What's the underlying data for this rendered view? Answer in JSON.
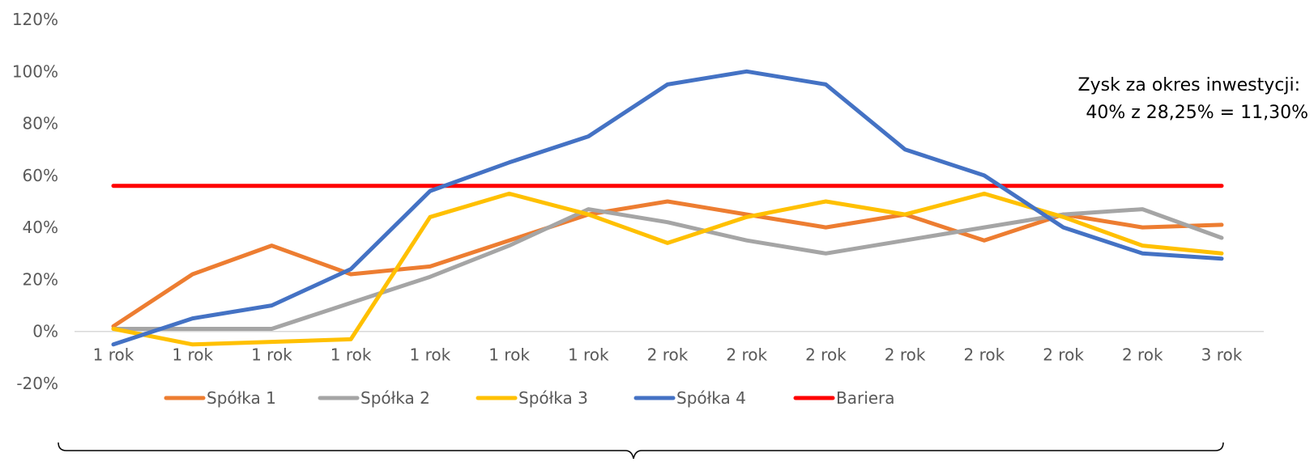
{
  "chart_data": {
    "type": "line",
    "categories": [
      "1 rok",
      "1 rok",
      "1 rok",
      "1 rok",
      "1 rok",
      "1 rok",
      "1 rok",
      "2 rok",
      "2 rok",
      "2 rok",
      "2 rok",
      "2 rok",
      "2 rok",
      "2 rok",
      "3 rok"
    ],
    "y_ticks": [
      "120%",
      "100%",
      "80%",
      "60%",
      "40%",
      "20%",
      "0%",
      "-20%"
    ],
    "ylim": [
      -20,
      120
    ],
    "y_unit": "%",
    "grid": false,
    "legend_position": "bottom",
    "series": [
      {
        "name": "Spółka 1",
        "color": "#ED7D31",
        "values": [
          2,
          22,
          33,
          22,
          25,
          35,
          45,
          50,
          45,
          40,
          45,
          35,
          45,
          40,
          41
        ]
      },
      {
        "name": "Spółka 2",
        "color": "#A5A5A5",
        "values": [
          1,
          1,
          1,
          11,
          21,
          33,
          47,
          42,
          35,
          30,
          35,
          40,
          45,
          47,
          36
        ]
      },
      {
        "name": "Spółka 3",
        "color": "#FFC000",
        "values": [
          1,
          -5,
          -4,
          -3,
          44,
          53,
          45,
          34,
          44,
          50,
          45,
          53,
          44,
          33,
          30
        ]
      },
      {
        "name": "Spółka 4",
        "color": "#4472C4",
        "values": [
          -5,
          5,
          10,
          24,
          54,
          65,
          75,
          95,
          100,
          95,
          70,
          60,
          40,
          30,
          28
        ]
      },
      {
        "name": "Bariera",
        "color": "#FF0000",
        "values": [
          56,
          56,
          56,
          56,
          56,
          56,
          56,
          56,
          56,
          56,
          56,
          56,
          56,
          56,
          56
        ]
      }
    ],
    "annotation": {
      "line1": "Zysk za okres inwestycji:",
      "line2": "40% z 28,25% = 11,30%"
    }
  }
}
